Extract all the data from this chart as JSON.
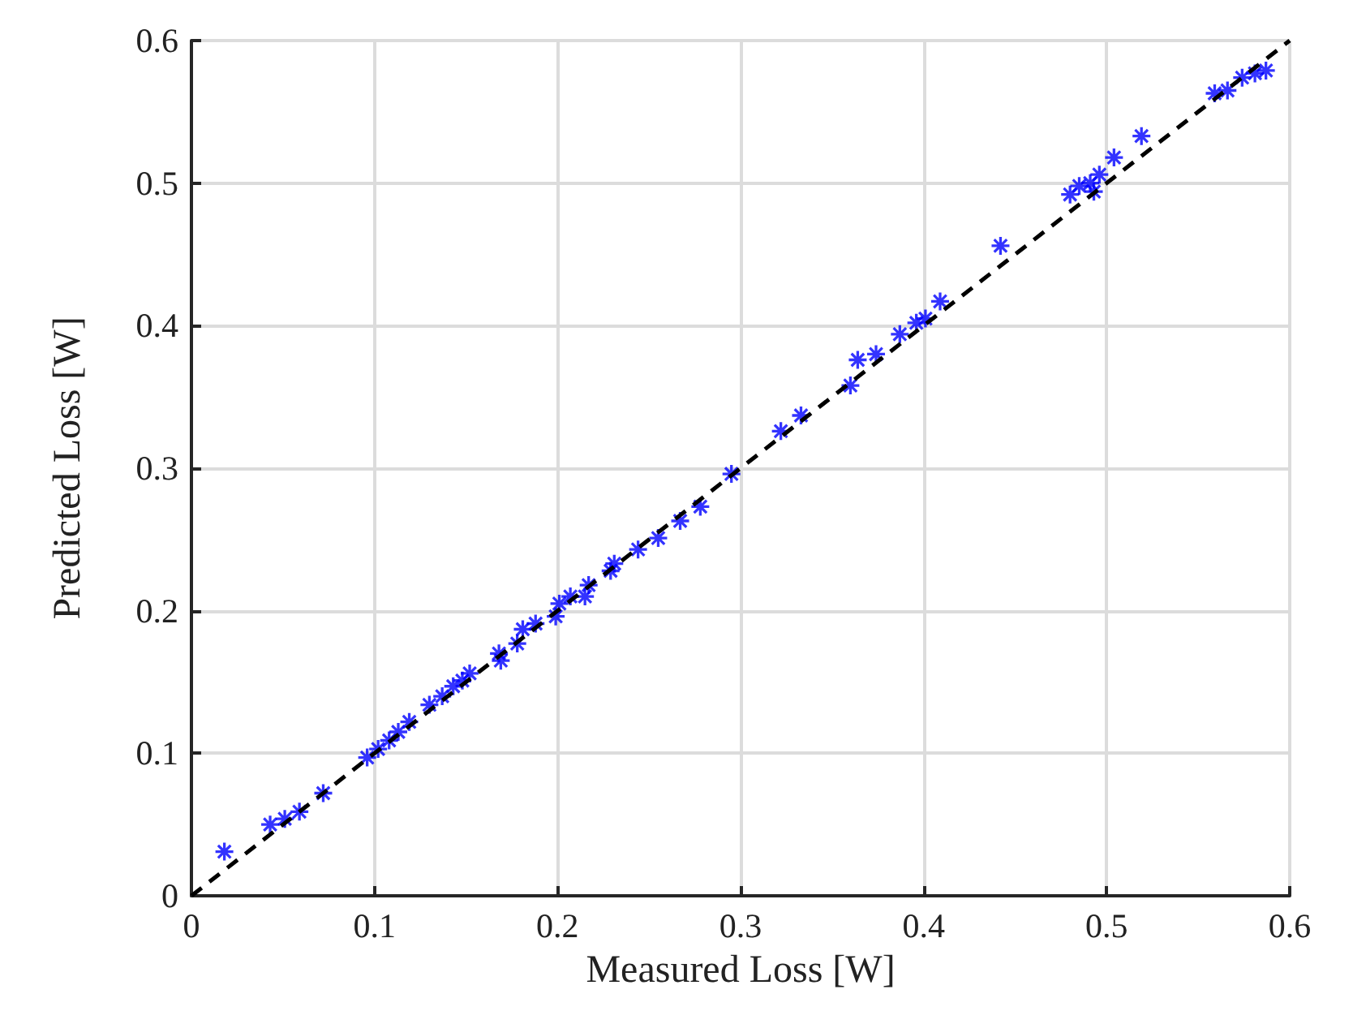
{
  "chart_data": {
    "type": "scatter",
    "xlabel": "Measured Loss [W]",
    "ylabel": "Predicted Loss [W]",
    "xlim": [
      0,
      0.6
    ],
    "ylim": [
      0,
      0.6
    ],
    "xticks": [
      0,
      0.1,
      0.2,
      0.3,
      0.4,
      0.5,
      0.6
    ],
    "yticks": [
      0,
      0.1,
      0.2,
      0.3,
      0.4,
      0.5,
      0.6
    ],
    "grid": true,
    "series": [
      {
        "color": "#0000ff",
        "marker": "star",
        "x": [
          0.018,
          0.043,
          0.051,
          0.059,
          0.072,
          0.096,
          0.102,
          0.108,
          0.113,
          0.119,
          0.13,
          0.137,
          0.143,
          0.148,
          0.152,
          0.168,
          0.169,
          0.178,
          0.181,
          0.188,
          0.199,
          0.201,
          0.207,
          0.215,
          0.217,
          0.229,
          0.231,
          0.244,
          0.255,
          0.267,
          0.278,
          0.295,
          0.322,
          0.333,
          0.36,
          0.364,
          0.374,
          0.387,
          0.396,
          0.401,
          0.409,
          0.442,
          0.48,
          0.485,
          0.491,
          0.493,
          0.496,
          0.504,
          0.519,
          0.559,
          0.566,
          0.574,
          0.581,
          0.587
        ],
        "values": [
          0.031,
          0.05,
          0.054,
          0.059,
          0.072,
          0.097,
          0.103,
          0.109,
          0.115,
          0.122,
          0.134,
          0.14,
          0.147,
          0.151,
          0.156,
          0.17,
          0.165,
          0.177,
          0.187,
          0.191,
          0.196,
          0.205,
          0.21,
          0.21,
          0.218,
          0.228,
          0.233,
          0.243,
          0.251,
          0.263,
          0.273,
          0.296,
          0.326,
          0.337,
          0.358,
          0.376,
          0.38,
          0.394,
          0.402,
          0.405,
          0.417,
          0.456,
          0.492,
          0.498,
          0.5,
          0.494,
          0.506,
          0.518,
          0.533,
          0.563,
          0.565,
          0.574,
          0.577,
          0.579
        ]
      },
      {
        "type": "line",
        "color": "#000000",
        "marker": "none",
        "line_style": "dashed",
        "x": [
          0,
          0.6
        ],
        "values": [
          0,
          0.6
        ]
      }
    ]
  }
}
